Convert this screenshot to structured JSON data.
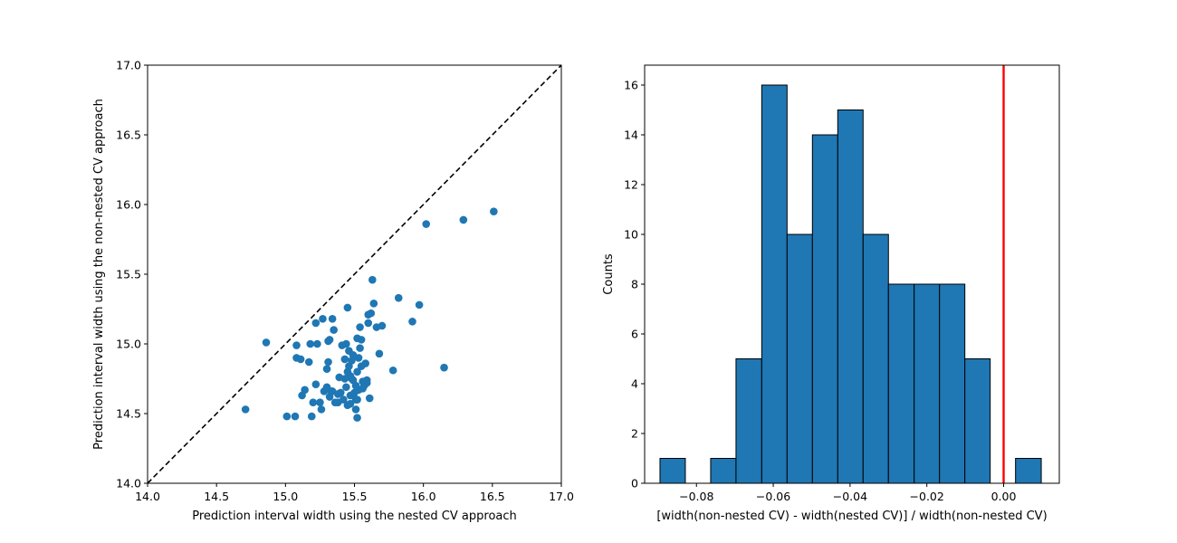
{
  "chart_data": [
    {
      "type": "scatter",
      "xlabel": "Prediction interval width using the nested CV approach",
      "ylabel": "Prediction interval width using the non-nested CV approach",
      "xlim": [
        14.0,
        17.0
      ],
      "ylim": [
        14.0,
        17.0
      ],
      "xticks": [
        "14.0",
        "14.5",
        "15.0",
        "15.5",
        "16.0",
        "16.5",
        "17.0"
      ],
      "yticks": [
        "14.0",
        "14.5",
        "15.0",
        "15.5",
        "16.0",
        "16.5",
        "17.0"
      ],
      "reference_line": {
        "style": "dashed",
        "color": "#000000",
        "from": [
          14.0,
          14.0
        ],
        "to": [
          17.0,
          17.0
        ]
      },
      "marker_color": "#1f77b4",
      "grid": false,
      "points": [
        [
          14.71,
          14.53
        ],
        [
          14.86,
          15.01
        ],
        [
          15.01,
          14.48
        ],
        [
          15.07,
          14.48
        ],
        [
          15.08,
          14.99
        ],
        [
          15.08,
          14.9
        ],
        [
          15.11,
          14.89
        ],
        [
          15.12,
          14.63
        ],
        [
          15.14,
          14.67
        ],
        [
          15.17,
          14.87
        ],
        [
          15.18,
          15.0
        ],
        [
          15.19,
          14.48
        ],
        [
          15.2,
          14.58
        ],
        [
          15.22,
          14.71
        ],
        [
          15.22,
          15.15
        ],
        [
          15.23,
          15.0
        ],
        [
          15.25,
          14.58
        ],
        [
          15.26,
          14.53
        ],
        [
          15.27,
          15.18
        ],
        [
          15.28,
          14.66
        ],
        [
          15.3,
          14.69
        ],
        [
          15.3,
          14.82
        ],
        [
          15.31,
          14.87
        ],
        [
          15.31,
          15.02
        ],
        [
          15.32,
          15.03
        ],
        [
          15.32,
          14.62
        ],
        [
          15.33,
          14.66
        ],
        [
          15.34,
          14.66
        ],
        [
          15.34,
          15.18
        ],
        [
          15.35,
          15.1
        ],
        [
          15.36,
          14.58
        ],
        [
          15.38,
          14.58
        ],
        [
          15.38,
          14.64
        ],
        [
          15.39,
          14.76
        ],
        [
          15.41,
          14.99
        ],
        [
          15.42,
          14.6
        ],
        [
          15.43,
          14.75
        ],
        [
          15.43,
          14.89
        ],
        [
          15.44,
          14.69
        ],
        [
          15.44,
          15.0
        ],
        [
          15.45,
          14.56
        ],
        [
          15.45,
          14.8
        ],
        [
          15.45,
          15.26
        ],
        [
          15.46,
          14.95
        ],
        [
          15.46,
          14.84
        ],
        [
          15.47,
          14.57
        ],
        [
          15.47,
          14.63
        ],
        [
          15.48,
          14.88
        ],
        [
          15.48,
          14.75
        ],
        [
          15.49,
          14.92
        ],
        [
          15.5,
          14.65
        ],
        [
          15.51,
          14.7
        ],
        [
          15.51,
          14.6
        ],
        [
          15.51,
          14.53
        ],
        [
          15.52,
          14.47
        ],
        [
          15.52,
          14.6
        ],
        [
          15.52,
          14.8
        ],
        [
          15.52,
          15.04
        ],
        [
          15.53,
          14.9
        ],
        [
          15.53,
          14.67
        ],
        [
          15.54,
          15.12
        ],
        [
          15.54,
          14.97
        ],
        [
          15.55,
          15.03
        ],
        [
          15.55,
          14.84
        ],
        [
          15.56,
          14.68
        ],
        [
          15.57,
          14.7
        ],
        [
          15.58,
          14.86
        ],
        [
          15.59,
          14.72
        ],
        [
          15.6,
          15.15
        ],
        [
          15.6,
          15.21
        ],
        [
          15.61,
          14.61
        ],
        [
          15.62,
          15.22
        ],
        [
          15.63,
          15.46
        ],
        [
          15.64,
          15.29
        ],
        [
          15.66,
          15.12
        ],
        [
          15.68,
          14.93
        ],
        [
          15.7,
          15.13
        ],
        [
          15.78,
          14.81
        ],
        [
          15.82,
          15.33
        ],
        [
          15.92,
          15.16
        ],
        [
          15.97,
          15.28
        ],
        [
          16.02,
          15.86
        ],
        [
          16.15,
          14.83
        ],
        [
          16.29,
          15.89
        ],
        [
          16.51,
          15.95
        ],
        [
          15.49,
          14.74
        ],
        [
          15.4,
          14.65
        ],
        [
          15.56,
          14.73
        ],
        [
          15.59,
          14.74
        ],
        [
          15.47,
          14.77
        ]
      ]
    },
    {
      "type": "bar",
      "subtype": "histogram",
      "xlabel": "[width(non-nested CV) - width(nested CV)] / width(non-nested CV)",
      "ylabel": "Counts",
      "xlim": [
        -0.0935,
        0.0145
      ],
      "ylim": [
        0,
        16.8
      ],
      "xticks": [
        -0.08,
        -0.06,
        -0.04,
        -0.02,
        0.0
      ],
      "xtick_labels": [
        "−0.08",
        "−0.06",
        "−0.04",
        "−0.02",
        "0.00"
      ],
      "yticks": [
        0,
        2,
        4,
        6,
        8,
        10,
        12,
        14,
        16
      ],
      "yticks_labels": [
        "0",
        "2",
        "4",
        "6",
        "8",
        "10",
        "12",
        "14",
        "16"
      ],
      "bin_edges": [
        -0.0895,
        -0.0829,
        -0.0763,
        -0.0697,
        -0.063,
        -0.0564,
        -0.0498,
        -0.0432,
        -0.0366,
        -0.03,
        -0.0233,
        -0.0167,
        -0.0101,
        -0.0035,
        0.0031,
        0.0098
      ],
      "values": [
        1,
        0,
        1,
        5,
        16,
        10,
        14,
        15,
        10,
        8,
        8,
        8,
        5,
        0,
        1
      ],
      "bar_color": "#1f77b4",
      "edge_color": "#000000",
      "reference_line": {
        "x": 0.0,
        "color": "#ff0000",
        "orientation": "vertical"
      },
      "grid": false
    }
  ]
}
